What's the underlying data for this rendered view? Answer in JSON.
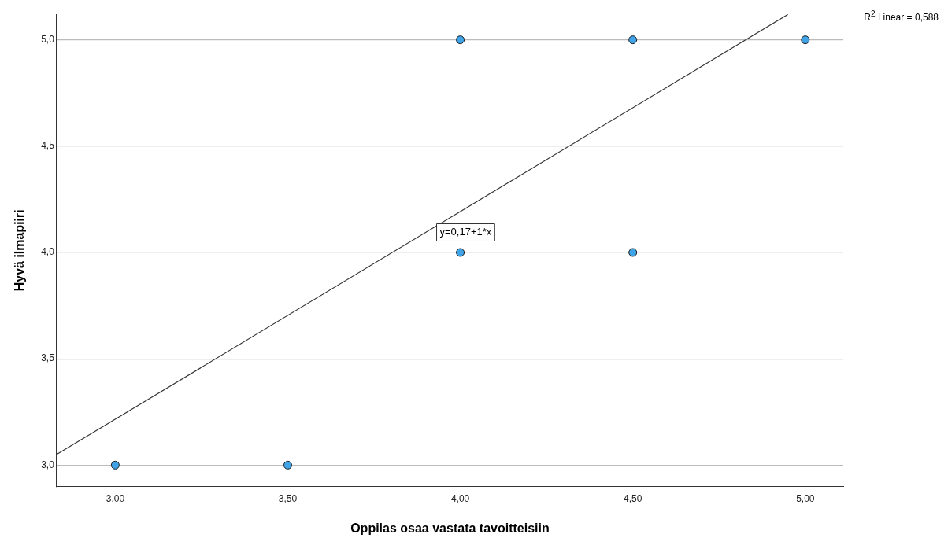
{
  "chart_data": {
    "type": "scatter",
    "xlabel": "Oppilas osaa vastata tavoitteisiin",
    "ylabel": "Hyvä ilmapiiri",
    "series": [
      {
        "color": "#3fa3e6",
        "marker": "circle",
        "x": [
          3,
          3.5,
          4,
          4,
          4.5,
          4.5,
          5
        ],
        "values": [
          3,
          3,
          5,
          4,
          5,
          4,
          5
        ]
      },
      {
        "type": "line",
        "color": "#333333",
        "marker": "none",
        "x": [
          2.83,
          4.95
        ],
        "values": [
          3.05,
          5.12
        ]
      }
    ],
    "xlim": [
      2.83,
      5.11
    ],
    "ylim": [
      2.9,
      5.12
    ],
    "xticks": [
      {
        "value": 3,
        "label": "3,00"
      },
      {
        "value": 3.5,
        "label": "3,50"
      },
      {
        "value": 4,
        "label": "4,00"
      },
      {
        "value": 4.5,
        "label": "4,50"
      },
      {
        "value": 5,
        "label": "5,00"
      }
    ],
    "yticks": [
      {
        "value": 3,
        "label": "3,0"
      },
      {
        "value": 3.5,
        "label": "3,5"
      },
      {
        "value": 4,
        "label": "4,0"
      },
      {
        "value": 4.5,
        "label": "4,5"
      },
      {
        "value": 5,
        "label": "5,0"
      }
    ],
    "grid": "y",
    "legend": false,
    "annotations": [
      "y=0,17+1*x",
      "R$^{2}$ Linear = 0,588"
    ]
  }
}
